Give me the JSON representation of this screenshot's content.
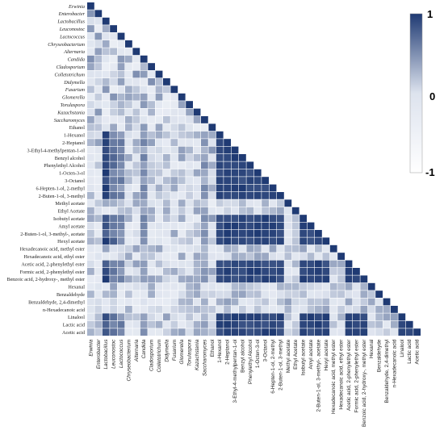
{
  "chart_data": {
    "type": "heatmap",
    "shape": "lower-triangle",
    "labels": [
      {
        "name": "Erwinia",
        "italic": true
      },
      {
        "name": "Enterobacter",
        "italic": true
      },
      {
        "name": "Lactobacillus",
        "italic": true
      },
      {
        "name": "Leuconostoc",
        "italic": true
      },
      {
        "name": "Lactococcus",
        "italic": true
      },
      {
        "name": "Chryseobacterium",
        "italic": true
      },
      {
        "name": "Alternaria",
        "italic": true
      },
      {
        "name": "Candida",
        "italic": true
      },
      {
        "name": "Cladosporium",
        "italic": true
      },
      {
        "name": "Colletotrichum",
        "italic": true
      },
      {
        "name": "Didymella",
        "italic": true
      },
      {
        "name": "Fusarium",
        "italic": true
      },
      {
        "name": "Glomerella",
        "italic": true
      },
      {
        "name": "Torulaspora",
        "italic": true
      },
      {
        "name": "Kazachstania",
        "italic": true
      },
      {
        "name": "Saccharomyces",
        "italic": true
      },
      {
        "name": "Ethanol",
        "italic": false
      },
      {
        "name": "1-Hexanol",
        "italic": false
      },
      {
        "name": "2-Heptanol",
        "italic": false
      },
      {
        "name": "3-Ethyl-4-methylpentan-1-ol",
        "italic": false
      },
      {
        "name": "Benzyl alcohol",
        "italic": false
      },
      {
        "name": "Phenylethyl Alcohol",
        "italic": false
      },
      {
        "name": "1-Octen-3-ol",
        "italic": false
      },
      {
        "name": "3-Octanol",
        "italic": false
      },
      {
        "name": "6-Hepten-1-ol, 2-methyl",
        "italic": false
      },
      {
        "name": "2-Buten-1-ol, 3-methyl",
        "italic": false
      },
      {
        "name": "Methyl acetate",
        "italic": false
      },
      {
        "name": "Ethyl Acetate",
        "italic": false
      },
      {
        "name": "Isobutyl acetate",
        "italic": false
      },
      {
        "name": "Amyl acetate",
        "italic": false
      },
      {
        "name": "2-Buten-1-ol, 3-methyl-, acetate",
        "italic": false
      },
      {
        "name": "Hexyl acetate",
        "italic": false
      },
      {
        "name": "Hexadecanoic acid, methyl ester",
        "italic": false
      },
      {
        "name": "Hexadecanoic acid, ethyl ester",
        "italic": false
      },
      {
        "name": "Acetic acid, 2-phenylethyl ester",
        "italic": false
      },
      {
        "name": "Formic acid, 2-phenylethyl ester",
        "italic": false
      },
      {
        "name": "Benzoic acid, 2-hydroxy-, methyl ester",
        "italic": false
      },
      {
        "name": "Hexanal",
        "italic": false
      },
      {
        "name": "Benzaldehyde",
        "italic": false
      },
      {
        "name": "Benzaldehyde, 2,4-dimethyl",
        "italic": false
      },
      {
        "name": "n-Hexadecanoic acid",
        "italic": false
      },
      {
        "name": "Linalool",
        "italic": false
      },
      {
        "name": "Lactic acid",
        "italic": false
      },
      {
        "name": "Acetic acid",
        "italic": false
      }
    ],
    "legend": {
      "max_label": "1",
      "mid_label": "0",
      "min_label": "-1",
      "range": [
        -1,
        1
      ],
      "low_color": "#ffffff",
      "high_color": "#1f3a73"
    },
    "colors": {
      "high": "#1f3a73",
      "low": "#ffffff"
    }
  }
}
